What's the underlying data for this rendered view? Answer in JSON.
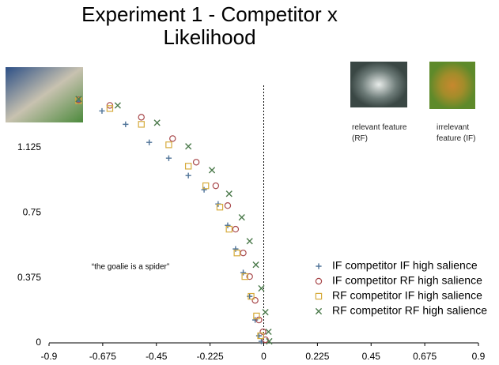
{
  "chart_data": {
    "type": "scatter",
    "title": "Experiment 1 - Competitor x Likelihood",
    "annotation": "“the goalie is a spider”",
    "image_labels": [
      "relevant feature (RF)",
      "irrelevant feature (IF)"
    ],
    "xlim": [
      -0.9,
      0.9
    ],
    "xticks": [
      -0.9,
      -0.675,
      -0.45,
      -0.225,
      0,
      0.225,
      0.45,
      0.675,
      0.9
    ],
    "ylim": [
      0,
      1.42
    ],
    "yticks": [
      0,
      0.375,
      0.75,
      1.125
    ],
    "zero_line": true,
    "legend": "lower right",
    "series": [
      {
        "name": "IF competitor IF high salience",
        "color": "#4f7398",
        "marker": "plus",
        "x": [
          -0.776,
          -0.678,
          -0.579,
          -0.48,
          -0.398,
          -0.316,
          -0.25,
          -0.191,
          -0.151,
          -0.118,
          -0.086,
          -0.059,
          -0.036,
          -0.02,
          -0.01
        ],
        "values": [
          1.391,
          1.336,
          1.259,
          1.155,
          1.064,
          0.964,
          0.882,
          0.8,
          0.677,
          0.541,
          0.405,
          0.268,
          0.132,
          0.041,
          0.009
        ]
      },
      {
        "name": "IF competitor RF high salience",
        "color": "#a8484b",
        "marker": "circle",
        "x": [
          -0.776,
          -0.645,
          -0.513,
          -0.382,
          -0.283,
          -0.201,
          -0.151,
          -0.118,
          -0.086,
          -0.059,
          -0.036,
          -0.02,
          -0.003,
          0.007
        ],
        "values": [
          1.4,
          1.368,
          1.3,
          1.177,
          1.041,
          0.905,
          0.791,
          0.655,
          0.518,
          0.382,
          0.245,
          0.132,
          0.064,
          0.018
        ]
      },
      {
        "name": "RF competitor IF high salience",
        "color": "#d6ab3c",
        "marker": "square",
        "x": [
          -0.776,
          -0.645,
          -0.513,
          -0.398,
          -0.316,
          -0.243,
          -0.184,
          -0.145,
          -0.112,
          -0.079,
          -0.053,
          -0.03,
          -0.013
        ],
        "values": [
          1.395,
          1.35,
          1.259,
          1.141,
          1.018,
          0.905,
          0.782,
          0.655,
          0.518,
          0.382,
          0.268,
          0.155,
          0.041
        ]
      },
      {
        "name": "RF competitor RF high salience",
        "color": "#4b7a4b",
        "marker": "x",
        "x": [
          -0.776,
          -0.612,
          -0.447,
          -0.316,
          -0.217,
          -0.145,
          -0.092,
          -0.059,
          -0.033,
          -0.01,
          0.007,
          0.02,
          0.023
        ],
        "values": [
          1.405,
          1.368,
          1.268,
          1.132,
          0.995,
          0.859,
          0.723,
          0.586,
          0.45,
          0.314,
          0.177,
          0.064,
          0.009
        ]
      }
    ]
  }
}
